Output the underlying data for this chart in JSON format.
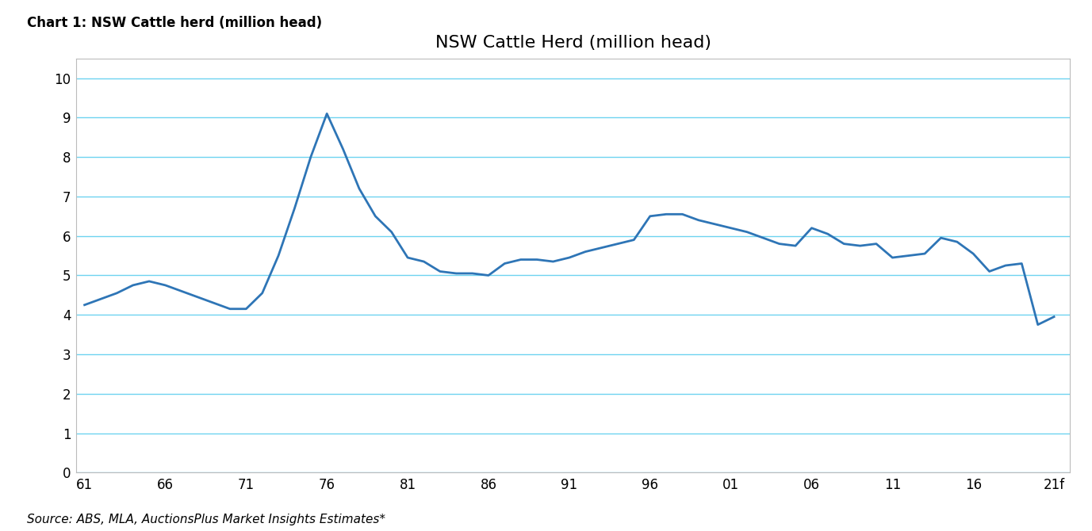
{
  "title": "NSW Cattle Herd (million head)",
  "suptitle": "Chart 1: NSW Cattle herd (million head)",
  "source": "Source: ABS, MLA, AuctionsPlus Market Insights Estimates*",
  "line_color": "#2E75B6",
  "line_width": 2.0,
  "grid_color": "#55CCEE",
  "grid_alpha": 0.85,
  "background_color": "#FFFFFF",
  "box_color": "#C0C0C0",
  "ylim": [
    0,
    10.5
  ],
  "yticks": [
    0,
    1,
    2,
    3,
    4,
    5,
    6,
    7,
    8,
    9,
    10
  ],
  "xtick_labels": [
    "61",
    "66",
    "71",
    "76",
    "81",
    "86",
    "91",
    "96",
    "01",
    "06",
    "11",
    "16",
    "21f"
  ],
  "xtick_positions": [
    0,
    5,
    10,
    15,
    20,
    25,
    30,
    35,
    40,
    45,
    50,
    55,
    60
  ],
  "x_values": [
    0,
    1,
    2,
    3,
    4,
    5,
    6,
    7,
    8,
    9,
    10,
    11,
    12,
    13,
    14,
    15,
    16,
    17,
    18,
    19,
    20,
    21,
    22,
    23,
    24,
    25,
    26,
    27,
    28,
    29,
    30,
    31,
    32,
    33,
    34,
    35,
    36,
    37,
    38,
    39,
    40,
    41,
    42,
    43,
    44,
    45,
    46,
    47,
    48,
    49,
    50,
    51,
    52,
    53,
    54,
    55,
    56,
    57,
    58,
    59,
    60
  ],
  "y_values": [
    4.25,
    4.4,
    4.55,
    4.75,
    4.85,
    4.75,
    4.6,
    4.45,
    4.3,
    4.15,
    4.15,
    4.55,
    5.5,
    6.7,
    8.0,
    9.1,
    8.2,
    7.2,
    6.5,
    6.1,
    5.45,
    5.35,
    5.1,
    5.05,
    5.05,
    5.0,
    5.3,
    5.4,
    5.4,
    5.35,
    5.45,
    5.6,
    5.7,
    5.8,
    5.9,
    6.5,
    6.55,
    6.55,
    6.4,
    6.3,
    6.2,
    6.1,
    5.95,
    5.8,
    5.75,
    6.2,
    6.05,
    5.8,
    5.75,
    5.8,
    5.45,
    5.5,
    5.55,
    5.95,
    5.85,
    5.55,
    5.1,
    5.25,
    5.3,
    3.75,
    3.95
  ]
}
